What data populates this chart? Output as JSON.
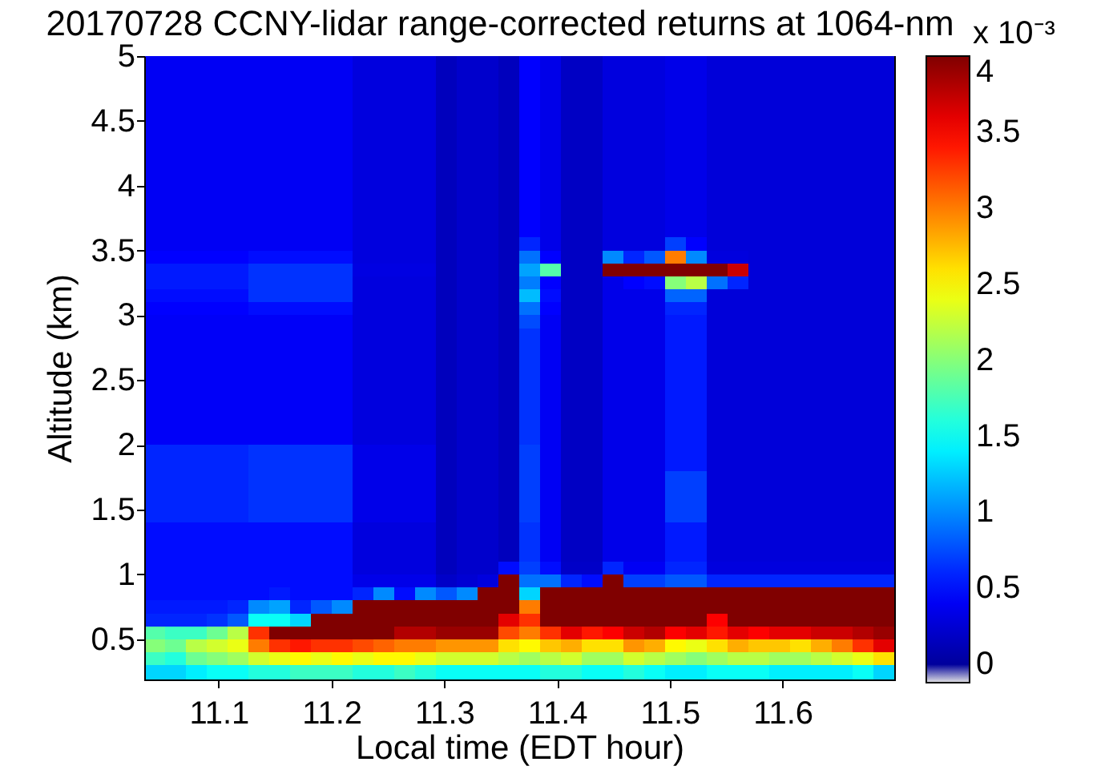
{
  "chart_data": {
    "type": "heatmap",
    "title": "20170728 CCNY-lidar range-corrected returns at 1064-nm",
    "xlabel": "Local time (EDT hour)",
    "ylabel": "Altitude (km)",
    "clabel": "x 10⁻³",
    "x": [
      11.043,
      11.062,
      11.08,
      11.099,
      11.117,
      11.136,
      11.154,
      11.173,
      11.191,
      11.21,
      11.228,
      11.246,
      11.265,
      11.283,
      11.302,
      11.32,
      11.339,
      11.357,
      11.376,
      11.394,
      11.413,
      11.431,
      11.45,
      11.468,
      11.487,
      11.505,
      11.524,
      11.542,
      11.56,
      11.579,
      11.597,
      11.616,
      11.634,
      11.653,
      11.671,
      11.69
    ],
    "y": [
      4.95,
      4.85,
      4.75,
      4.65,
      4.55,
      4.45,
      4.35,
      4.25,
      4.15,
      4.05,
      3.95,
      3.85,
      3.75,
      3.65,
      3.55,
      3.45,
      3.35,
      3.25,
      3.15,
      3.05,
      2.95,
      2.85,
      2.75,
      2.65,
      2.55,
      2.45,
      2.35,
      2.25,
      2.15,
      2.05,
      1.95,
      1.85,
      1.75,
      1.65,
      1.55,
      1.45,
      1.35,
      1.25,
      1.15,
      1.05,
      0.95,
      0.85,
      0.75,
      0.65,
      0.55,
      0.45,
      0.35,
      0.25
    ],
    "cells": [
      [
        0.4,
        0.4,
        0.4,
        0.4,
        0.4,
        0.4,
        0.4,
        0.4,
        0.4,
        0.4,
        0.3,
        0.3,
        0.3,
        0.3,
        0.15,
        0.22,
        0.22,
        0.15,
        0.45,
        0.35,
        0.18,
        0.18,
        0.3,
        0.3,
        0.3,
        0.35,
        0.35,
        0.28,
        0.28,
        0.28,
        0.28,
        0.28,
        0.28,
        0.28,
        0.28,
        0.28
      ],
      [
        0.4,
        0.4,
        0.4,
        0.4,
        0.4,
        0.4,
        0.4,
        0.4,
        0.4,
        0.4,
        0.3,
        0.3,
        0.3,
        0.3,
        0.15,
        0.22,
        0.22,
        0.15,
        0.45,
        0.35,
        0.18,
        0.18,
        0.3,
        0.3,
        0.3,
        0.35,
        0.35,
        0.28,
        0.28,
        0.28,
        0.28,
        0.28,
        0.28,
        0.28,
        0.28,
        0.28
      ],
      [
        0.4,
        0.4,
        0.4,
        0.4,
        0.4,
        0.4,
        0.4,
        0.4,
        0.4,
        0.4,
        0.3,
        0.3,
        0.3,
        0.3,
        0.15,
        0.22,
        0.22,
        0.15,
        0.45,
        0.35,
        0.18,
        0.18,
        0.3,
        0.3,
        0.3,
        0.35,
        0.35,
        0.28,
        0.28,
        0.28,
        0.28,
        0.28,
        0.28,
        0.28,
        0.28,
        0.28
      ],
      [
        0.4,
        0.4,
        0.4,
        0.4,
        0.4,
        0.4,
        0.4,
        0.4,
        0.4,
        0.4,
        0.3,
        0.3,
        0.3,
        0.3,
        0.15,
        0.22,
        0.22,
        0.15,
        0.45,
        0.35,
        0.18,
        0.18,
        0.3,
        0.3,
        0.3,
        0.35,
        0.35,
        0.28,
        0.28,
        0.28,
        0.28,
        0.28,
        0.28,
        0.28,
        0.28,
        0.28
      ],
      [
        0.4,
        0.4,
        0.4,
        0.4,
        0.4,
        0.4,
        0.4,
        0.4,
        0.4,
        0.4,
        0.3,
        0.3,
        0.3,
        0.3,
        0.15,
        0.22,
        0.22,
        0.15,
        0.45,
        0.35,
        0.18,
        0.18,
        0.3,
        0.3,
        0.3,
        0.35,
        0.35,
        0.28,
        0.28,
        0.28,
        0.28,
        0.28,
        0.28,
        0.28,
        0.28,
        0.28
      ],
      [
        0.4,
        0.4,
        0.4,
        0.4,
        0.4,
        0.4,
        0.4,
        0.4,
        0.4,
        0.4,
        0.3,
        0.3,
        0.3,
        0.3,
        0.15,
        0.22,
        0.22,
        0.15,
        0.45,
        0.35,
        0.18,
        0.18,
        0.3,
        0.3,
        0.3,
        0.35,
        0.35,
        0.28,
        0.28,
        0.28,
        0.28,
        0.28,
        0.28,
        0.28,
        0.28,
        0.28
      ],
      [
        0.4,
        0.4,
        0.4,
        0.4,
        0.4,
        0.4,
        0.4,
        0.4,
        0.4,
        0.4,
        0.3,
        0.3,
        0.3,
        0.3,
        0.15,
        0.22,
        0.22,
        0.15,
        0.45,
        0.35,
        0.18,
        0.18,
        0.3,
        0.3,
        0.3,
        0.35,
        0.35,
        0.28,
        0.28,
        0.28,
        0.28,
        0.28,
        0.28,
        0.28,
        0.28,
        0.28
      ],
      [
        0.4,
        0.4,
        0.4,
        0.4,
        0.4,
        0.4,
        0.4,
        0.4,
        0.4,
        0.4,
        0.3,
        0.3,
        0.3,
        0.3,
        0.15,
        0.22,
        0.22,
        0.15,
        0.45,
        0.35,
        0.18,
        0.18,
        0.3,
        0.3,
        0.3,
        0.35,
        0.35,
        0.28,
        0.28,
        0.28,
        0.28,
        0.28,
        0.28,
        0.28,
        0.28,
        0.28
      ],
      [
        0.4,
        0.4,
        0.4,
        0.4,
        0.4,
        0.4,
        0.4,
        0.4,
        0.4,
        0.4,
        0.3,
        0.3,
        0.3,
        0.3,
        0.15,
        0.22,
        0.22,
        0.15,
        0.45,
        0.35,
        0.18,
        0.18,
        0.3,
        0.3,
        0.3,
        0.35,
        0.35,
        0.28,
        0.28,
        0.28,
        0.28,
        0.28,
        0.28,
        0.28,
        0.28,
        0.28
      ],
      [
        0.4,
        0.4,
        0.4,
        0.4,
        0.4,
        0.4,
        0.4,
        0.4,
        0.4,
        0.4,
        0.3,
        0.3,
        0.3,
        0.3,
        0.15,
        0.22,
        0.22,
        0.15,
        0.45,
        0.35,
        0.18,
        0.18,
        0.3,
        0.3,
        0.3,
        0.35,
        0.35,
        0.28,
        0.28,
        0.28,
        0.28,
        0.28,
        0.28,
        0.28,
        0.28,
        0.28
      ],
      [
        0.4,
        0.4,
        0.4,
        0.4,
        0.4,
        0.4,
        0.4,
        0.4,
        0.4,
        0.4,
        0.3,
        0.3,
        0.3,
        0.3,
        0.15,
        0.22,
        0.22,
        0.15,
        0.45,
        0.35,
        0.18,
        0.18,
        0.3,
        0.3,
        0.3,
        0.35,
        0.35,
        0.28,
        0.28,
        0.28,
        0.28,
        0.28,
        0.28,
        0.28,
        0.28,
        0.28
      ],
      [
        0.4,
        0.4,
        0.4,
        0.4,
        0.4,
        0.4,
        0.4,
        0.4,
        0.4,
        0.4,
        0.3,
        0.3,
        0.3,
        0.3,
        0.15,
        0.22,
        0.22,
        0.15,
        0.45,
        0.35,
        0.18,
        0.18,
        0.3,
        0.3,
        0.3,
        0.35,
        0.35,
        0.28,
        0.28,
        0.28,
        0.28,
        0.28,
        0.28,
        0.28,
        0.28,
        0.28
      ],
      [
        0.4,
        0.4,
        0.4,
        0.4,
        0.4,
        0.4,
        0.4,
        0.4,
        0.4,
        0.4,
        0.3,
        0.3,
        0.3,
        0.3,
        0.15,
        0.22,
        0.22,
        0.15,
        0.45,
        0.35,
        0.18,
        0.18,
        0.3,
        0.3,
        0.3,
        0.35,
        0.35,
        0.28,
        0.28,
        0.28,
        0.28,
        0.28,
        0.28,
        0.28,
        0.28,
        0.28
      ],
      [
        0.4,
        0.4,
        0.4,
        0.4,
        0.4,
        0.4,
        0.4,
        0.4,
        0.4,
        0.4,
        0.3,
        0.3,
        0.3,
        0.3,
        0.15,
        0.22,
        0.22,
        0.15,
        0.45,
        0.35,
        0.18,
        0.18,
        0.3,
        0.3,
        0.3,
        0.35,
        0.35,
        0.28,
        0.28,
        0.28,
        0.28,
        0.28,
        0.28,
        0.28,
        0.28,
        0.28
      ],
      [
        0.4,
        0.4,
        0.4,
        0.4,
        0.4,
        0.4,
        0.4,
        0.4,
        0.4,
        0.4,
        0.3,
        0.3,
        0.3,
        0.3,
        0.15,
        0.22,
        0.22,
        0.15,
        0.6,
        0.35,
        0.18,
        0.18,
        0.3,
        0.3,
        0.3,
        0.7,
        0.45,
        0.28,
        0.28,
        0.28,
        0.28,
        0.28,
        0.28,
        0.28,
        0.28,
        0.28
      ],
      [
        0.45,
        0.45,
        0.45,
        0.45,
        0.45,
        0.5,
        0.5,
        0.5,
        0.5,
        0.5,
        0.3,
        0.3,
        0.3,
        0.3,
        0.15,
        0.22,
        0.22,
        0.15,
        0.9,
        0.45,
        0.18,
        0.18,
        1,
        0.6,
        0.8,
        3,
        1,
        0.3,
        0.3,
        0.28,
        0.28,
        0.28,
        0.28,
        0.28,
        0.28,
        0.28
      ],
      [
        0.55,
        0.55,
        0.55,
        0.55,
        0.55,
        0.65,
        0.65,
        0.65,
        0.65,
        0.65,
        0.32,
        0.32,
        0.32,
        0.32,
        0.15,
        0.22,
        0.22,
        0.15,
        1.1,
        1.8,
        0.18,
        0.18,
        4,
        4,
        4,
        4,
        4,
        4,
        3.7,
        0.28,
        0.28,
        0.28,
        0.28,
        0.28,
        0.28,
        0.28
      ],
      [
        0.55,
        0.55,
        0.55,
        0.55,
        0.55,
        0.65,
        0.65,
        0.65,
        0.65,
        0.65,
        0.3,
        0.3,
        0.3,
        0.3,
        0.15,
        0.22,
        0.22,
        0.15,
        0.95,
        0.45,
        0.18,
        0.18,
        0.35,
        0.45,
        0.5,
        2,
        2.2,
        0.9,
        0.6,
        0.28,
        0.28,
        0.28,
        0.28,
        0.28,
        0.28,
        0.28
      ],
      [
        0.5,
        0.5,
        0.5,
        0.5,
        0.5,
        0.65,
        0.65,
        0.65,
        0.65,
        0.65,
        0.3,
        0.3,
        0.3,
        0.3,
        0.15,
        0.22,
        0.22,
        0.15,
        1.2,
        0.5,
        0.18,
        0.18,
        0.35,
        0.35,
        0.35,
        0.85,
        0.85,
        0.28,
        0.28,
        0.28,
        0.28,
        0.28,
        0.28,
        0.28,
        0.28,
        0.28
      ],
      [
        0.45,
        0.45,
        0.45,
        0.45,
        0.45,
        0.5,
        0.5,
        0.5,
        0.5,
        0.5,
        0.3,
        0.3,
        0.3,
        0.3,
        0.15,
        0.22,
        0.22,
        0.15,
        0.9,
        0.45,
        0.18,
        0.18,
        0.35,
        0.35,
        0.35,
        0.6,
        0.6,
        0.28,
        0.28,
        0.28,
        0.28,
        0.28,
        0.28,
        0.28,
        0.28,
        0.28
      ],
      [
        0.42,
        0.42,
        0.42,
        0.42,
        0.42,
        0.42,
        0.42,
        0.42,
        0.42,
        0.42,
        0.3,
        0.3,
        0.3,
        0.3,
        0.15,
        0.22,
        0.22,
        0.15,
        0.75,
        0.4,
        0.18,
        0.18,
        0.35,
        0.35,
        0.35,
        0.55,
        0.55,
        0.28,
        0.28,
        0.28,
        0.28,
        0.28,
        0.28,
        0.28,
        0.28,
        0.28
      ],
      [
        0.42,
        0.42,
        0.42,
        0.42,
        0.42,
        0.42,
        0.42,
        0.42,
        0.42,
        0.42,
        0.3,
        0.3,
        0.3,
        0.3,
        0.15,
        0.22,
        0.22,
        0.15,
        0.65,
        0.4,
        0.18,
        0.18,
        0.35,
        0.35,
        0.35,
        0.55,
        0.55,
        0.28,
        0.28,
        0.28,
        0.28,
        0.28,
        0.28,
        0.28,
        0.28,
        0.28
      ],
      [
        0.42,
        0.42,
        0.42,
        0.42,
        0.42,
        0.42,
        0.42,
        0.42,
        0.42,
        0.42,
        0.3,
        0.3,
        0.3,
        0.3,
        0.15,
        0.22,
        0.22,
        0.15,
        0.65,
        0.4,
        0.18,
        0.18,
        0.35,
        0.35,
        0.35,
        0.55,
        0.55,
        0.28,
        0.28,
        0.28,
        0.28,
        0.28,
        0.28,
        0.28,
        0.28,
        0.28
      ],
      [
        0.42,
        0.42,
        0.42,
        0.42,
        0.42,
        0.42,
        0.42,
        0.42,
        0.42,
        0.42,
        0.3,
        0.3,
        0.3,
        0.3,
        0.15,
        0.22,
        0.22,
        0.15,
        0.65,
        0.4,
        0.18,
        0.18,
        0.35,
        0.35,
        0.35,
        0.55,
        0.55,
        0.28,
        0.28,
        0.28,
        0.28,
        0.28,
        0.28,
        0.28,
        0.28,
        0.28
      ],
      [
        0.42,
        0.42,
        0.42,
        0.42,
        0.42,
        0.42,
        0.42,
        0.42,
        0.42,
        0.42,
        0.3,
        0.3,
        0.3,
        0.3,
        0.15,
        0.22,
        0.22,
        0.15,
        0.65,
        0.4,
        0.18,
        0.18,
        0.35,
        0.35,
        0.35,
        0.55,
        0.55,
        0.28,
        0.28,
        0.28,
        0.28,
        0.28,
        0.28,
        0.28,
        0.28,
        0.28
      ],
      [
        0.42,
        0.42,
        0.42,
        0.42,
        0.42,
        0.42,
        0.42,
        0.42,
        0.42,
        0.42,
        0.3,
        0.3,
        0.3,
        0.3,
        0.15,
        0.22,
        0.22,
        0.15,
        0.65,
        0.4,
        0.18,
        0.18,
        0.35,
        0.35,
        0.35,
        0.55,
        0.55,
        0.28,
        0.28,
        0.28,
        0.28,
        0.28,
        0.28,
        0.28,
        0.28,
        0.28
      ],
      [
        0.42,
        0.42,
        0.42,
        0.42,
        0.42,
        0.42,
        0.42,
        0.42,
        0.42,
        0.42,
        0.3,
        0.3,
        0.3,
        0.3,
        0.15,
        0.22,
        0.22,
        0.15,
        0.65,
        0.4,
        0.18,
        0.18,
        0.35,
        0.35,
        0.35,
        0.55,
        0.55,
        0.28,
        0.28,
        0.28,
        0.28,
        0.28,
        0.28,
        0.28,
        0.28,
        0.28
      ],
      [
        0.42,
        0.42,
        0.42,
        0.42,
        0.42,
        0.42,
        0.42,
        0.42,
        0.42,
        0.42,
        0.3,
        0.3,
        0.3,
        0.3,
        0.15,
        0.22,
        0.22,
        0.15,
        0.65,
        0.4,
        0.18,
        0.18,
        0.35,
        0.35,
        0.35,
        0.55,
        0.55,
        0.28,
        0.28,
        0.28,
        0.28,
        0.28,
        0.28,
        0.28,
        0.28,
        0.28
      ],
      [
        0.42,
        0.42,
        0.42,
        0.42,
        0.42,
        0.42,
        0.42,
        0.42,
        0.42,
        0.42,
        0.3,
        0.3,
        0.3,
        0.3,
        0.15,
        0.22,
        0.22,
        0.15,
        0.65,
        0.4,
        0.18,
        0.18,
        0.35,
        0.35,
        0.35,
        0.55,
        0.55,
        0.28,
        0.28,
        0.28,
        0.28,
        0.28,
        0.28,
        0.28,
        0.28,
        0.28
      ],
      [
        0.42,
        0.42,
        0.42,
        0.42,
        0.42,
        0.42,
        0.42,
        0.42,
        0.42,
        0.42,
        0.3,
        0.3,
        0.3,
        0.3,
        0.15,
        0.22,
        0.22,
        0.15,
        0.65,
        0.4,
        0.18,
        0.18,
        0.35,
        0.35,
        0.35,
        0.55,
        0.55,
        0.28,
        0.28,
        0.28,
        0.28,
        0.28,
        0.28,
        0.28,
        0.28,
        0.28
      ],
      [
        0.6,
        0.6,
        0.6,
        0.6,
        0.6,
        0.65,
        0.65,
        0.65,
        0.65,
        0.65,
        0.35,
        0.35,
        0.35,
        0.35,
        0.15,
        0.22,
        0.22,
        0.15,
        0.7,
        0.4,
        0.18,
        0.18,
        0.35,
        0.35,
        0.35,
        0.55,
        0.55,
        0.28,
        0.28,
        0.28,
        0.28,
        0.28,
        0.28,
        0.28,
        0.28,
        0.28
      ],
      [
        0.6,
        0.6,
        0.6,
        0.6,
        0.6,
        0.65,
        0.65,
        0.65,
        0.65,
        0.65,
        0.35,
        0.35,
        0.35,
        0.35,
        0.15,
        0.22,
        0.22,
        0.15,
        0.7,
        0.4,
        0.18,
        0.18,
        0.35,
        0.35,
        0.35,
        0.55,
        0.55,
        0.28,
        0.28,
        0.28,
        0.28,
        0.28,
        0.28,
        0.28,
        0.28,
        0.28
      ],
      [
        0.6,
        0.6,
        0.6,
        0.6,
        0.6,
        0.65,
        0.65,
        0.65,
        0.65,
        0.65,
        0.35,
        0.35,
        0.35,
        0.35,
        0.15,
        0.22,
        0.22,
        0.15,
        0.7,
        0.4,
        0.18,
        0.18,
        0.35,
        0.35,
        0.35,
        0.7,
        0.7,
        0.28,
        0.28,
        0.28,
        0.28,
        0.28,
        0.28,
        0.28,
        0.28,
        0.28
      ],
      [
        0.6,
        0.6,
        0.6,
        0.6,
        0.6,
        0.65,
        0.65,
        0.65,
        0.65,
        0.65,
        0.35,
        0.35,
        0.35,
        0.35,
        0.15,
        0.22,
        0.22,
        0.15,
        0.7,
        0.4,
        0.18,
        0.18,
        0.35,
        0.35,
        0.35,
        0.7,
        0.7,
        0.28,
        0.28,
        0.28,
        0.28,
        0.28,
        0.28,
        0.28,
        0.28,
        0.28
      ],
      [
        0.6,
        0.6,
        0.6,
        0.6,
        0.6,
        0.65,
        0.65,
        0.65,
        0.65,
        0.65,
        0.35,
        0.35,
        0.35,
        0.35,
        0.15,
        0.22,
        0.22,
        0.15,
        0.7,
        0.4,
        0.18,
        0.18,
        0.35,
        0.35,
        0.35,
        0.7,
        0.7,
        0.28,
        0.28,
        0.28,
        0.28,
        0.28,
        0.28,
        0.28,
        0.28,
        0.28
      ],
      [
        0.6,
        0.6,
        0.6,
        0.6,
        0.6,
        0.65,
        0.65,
        0.65,
        0.65,
        0.65,
        0.35,
        0.35,
        0.35,
        0.35,
        0.15,
        0.22,
        0.22,
        0.15,
        0.7,
        0.4,
        0.18,
        0.18,
        0.35,
        0.35,
        0.35,
        0.7,
        0.7,
        0.28,
        0.28,
        0.28,
        0.28,
        0.28,
        0.28,
        0.28,
        0.28,
        0.28
      ],
      [
        0.5,
        0.5,
        0.5,
        0.5,
        0.5,
        0.5,
        0.5,
        0.5,
        0.5,
        0.5,
        0.3,
        0.3,
        0.3,
        0.3,
        0.15,
        0.22,
        0.22,
        0.15,
        0.65,
        0.4,
        0.18,
        0.18,
        0.35,
        0.35,
        0.35,
        0.55,
        0.55,
        0.28,
        0.28,
        0.28,
        0.28,
        0.28,
        0.28,
        0.28,
        0.28,
        0.28
      ],
      [
        0.5,
        0.5,
        0.5,
        0.5,
        0.5,
        0.5,
        0.5,
        0.5,
        0.5,
        0.5,
        0.3,
        0.3,
        0.3,
        0.3,
        0.15,
        0.22,
        0.22,
        0.15,
        0.65,
        0.4,
        0.18,
        0.18,
        0.35,
        0.35,
        0.35,
        0.55,
        0.55,
        0.28,
        0.28,
        0.28,
        0.28,
        0.28,
        0.28,
        0.28,
        0.28,
        0.28
      ],
      [
        0.5,
        0.5,
        0.5,
        0.5,
        0.5,
        0.5,
        0.5,
        0.5,
        0.5,
        0.5,
        0.3,
        0.3,
        0.3,
        0.3,
        0.15,
        0.22,
        0.22,
        0.15,
        0.65,
        0.4,
        0.18,
        0.18,
        0.35,
        0.35,
        0.35,
        0.55,
        0.55,
        0.28,
        0.28,
        0.28,
        0.28,
        0.28,
        0.28,
        0.28,
        0.28,
        0.28
      ],
      [
        0.5,
        0.5,
        0.5,
        0.5,
        0.5,
        0.5,
        0.5,
        0.5,
        0.5,
        0.5,
        0.3,
        0.3,
        0.3,
        0.3,
        0.15,
        0.22,
        0.22,
        0.5,
        0.7,
        0.5,
        0.2,
        0.2,
        0.6,
        0.4,
        0.4,
        0.6,
        0.6,
        0.3,
        0.3,
        0.3,
        0.3,
        0.3,
        0.3,
        0.3,
        0.3,
        0.3
      ],
      [
        0.5,
        0.5,
        0.5,
        0.5,
        0.5,
        0.5,
        0.5,
        0.5,
        0.5,
        0.5,
        0.35,
        0.35,
        0.35,
        0.35,
        0.2,
        0.25,
        0.3,
        4,
        0.9,
        0.9,
        0.6,
        0.5,
        4,
        0.7,
        0.7,
        0.8,
        0.8,
        0.6,
        0.6,
        0.6,
        0.6,
        0.6,
        0.6,
        0.6,
        0.6,
        0.6
      ],
      [
        0.5,
        0.5,
        0.5,
        0.5,
        0.5,
        0.5,
        0.55,
        0.5,
        0.5,
        0.5,
        0.6,
        1,
        0.5,
        1,
        0.8,
        1,
        4,
        4,
        1.3,
        4,
        4,
        4,
        4,
        4,
        4,
        4,
        4,
        4,
        4,
        4,
        4,
        4,
        4,
        4,
        4,
        4
      ],
      [
        0.55,
        0.55,
        0.55,
        0.55,
        0.6,
        1,
        1.1,
        0.6,
        0.8,
        1,
        4,
        4,
        4,
        4,
        4,
        4,
        4,
        4,
        3,
        4,
        4,
        4,
        4,
        4,
        4,
        4,
        4,
        4,
        4,
        4,
        4,
        4,
        4,
        4,
        4,
        4
      ],
      [
        0.6,
        0.6,
        0.6,
        0.65,
        0.8,
        1.5,
        1.5,
        1.3,
        4,
        4,
        4,
        4,
        4,
        4,
        4,
        4,
        4,
        3.6,
        3.3,
        4,
        4,
        4,
        4,
        4,
        4,
        4,
        4,
        3.5,
        4,
        4,
        4,
        4,
        4,
        4,
        4,
        4
      ],
      [
        1.8,
        1.7,
        1.7,
        1.9,
        2.2,
        3.3,
        4,
        4,
        4,
        4,
        4,
        4,
        3.8,
        3.8,
        3.9,
        3.9,
        3.9,
        3.2,
        3,
        3.3,
        3.6,
        3.4,
        3.5,
        3.7,
        3.8,
        3.5,
        3.6,
        3.4,
        3.6,
        3.5,
        3.6,
        3.6,
        3.7,
        3.7,
        3.8,
        3.9
      ],
      [
        2,
        1.9,
        2.2,
        2.3,
        2.4,
        3,
        3.3,
        3.4,
        3.3,
        3.3,
        3.2,
        3.1,
        3,
        3,
        2.9,
        2.9,
        2.9,
        2.6,
        2.5,
        2.7,
        2.8,
        2.6,
        2.6,
        2.9,
        2.8,
        2.5,
        2.4,
        2.6,
        2.8,
        2.7,
        2.7,
        2.6,
        2.8,
        3,
        3.3,
        3.6
      ],
      [
        1.7,
        1.6,
        1.9,
        2,
        2.1,
        2.3,
        2.4,
        2.5,
        2.4,
        2.5,
        2.4,
        2.5,
        2.5,
        2.4,
        2.3,
        2.3,
        2.3,
        2.2,
        2.1,
        2.2,
        2.3,
        2.1,
        2.1,
        2.3,
        2.2,
        2.1,
        2,
        2.1,
        2.2,
        2.2,
        2.1,
        2.1,
        2.2,
        2.3,
        2.4,
        2.6
      ],
      [
        1.3,
        1.3,
        1.4,
        1.5,
        1.5,
        1.6,
        1.6,
        1.7,
        1.7,
        1.7,
        1.6,
        1.6,
        1.7,
        1.6,
        1.5,
        1.5,
        1.5,
        1.5,
        1.5,
        1.6,
        1.6,
        1.5,
        1.5,
        1.6,
        1.5,
        1.4,
        1.4,
        1.5,
        1.5,
        1.5,
        1.4,
        1.4,
        1.4,
        1.4,
        1.5,
        1.3
      ]
    ],
    "xlim": [
      11.034,
      11.699
    ],
    "xticks": [
      11.1,
      11.2,
      11.3,
      11.4,
      11.5,
      11.6
    ],
    "ylim": [
      0.19,
      5
    ],
    "yticks": [
      0.5,
      1,
      1.5,
      2,
      2.5,
      3,
      3.5,
      4,
      4.5,
      5
    ],
    "clim": [
      -0.12,
      4
    ],
    "cticks": [
      0,
      0.5,
      1,
      1.5,
      2,
      2.5,
      3,
      3.5,
      4
    ]
  }
}
